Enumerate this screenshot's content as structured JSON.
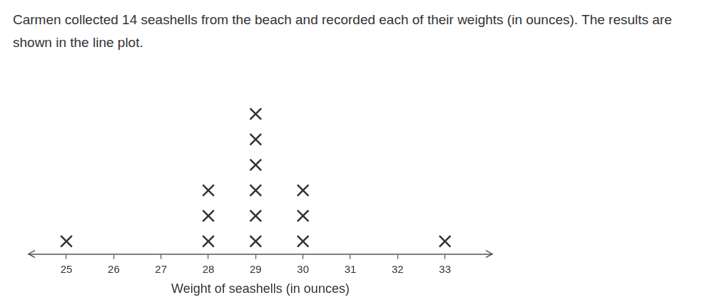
{
  "chart_data": {
    "type": "dot_plot",
    "title": "Carmen collected 14 seashells from the beach and recorded each of their weights (in ounces). The results are shown in the line plot.",
    "x_label": "Weight of seashells (in ounces)",
    "x": [
      25,
      26,
      27,
      28,
      29,
      30,
      31,
      32,
      33
    ],
    "values": [
      1,
      0,
      0,
      3,
      6,
      3,
      0,
      0,
      1
    ],
    "xlim": [
      24.2,
      34
    ],
    "xticks": [
      25,
      26,
      27,
      28,
      29,
      30,
      31,
      32,
      33
    ],
    "color": "#333333",
    "marker": "x",
    "grid": false,
    "tick_labels": "x"
  }
}
